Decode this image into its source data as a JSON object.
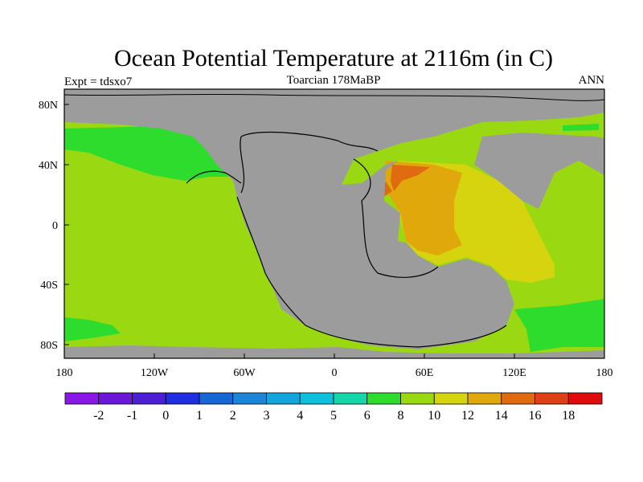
{
  "header": {
    "title": "Ocean Potential Temperature at 2116m (in C)",
    "left_label": "Expt = tdsxo7",
    "center_label": "Toarcian 178MaBP",
    "right_label": "ANN"
  },
  "map": {
    "x_tick_labels": [
      "180",
      "120W",
      "60W",
      "0",
      "60E",
      "120E",
      "180"
    ],
    "y_tick_labels": [
      "80N",
      "40N",
      "0",
      "40S",
      "80S"
    ],
    "land_color": "#9c9c9c",
    "coastline_color": "#000000"
  },
  "colorbar": {
    "colors": [
      "#8a17e6",
      "#6a17d8",
      "#4d1fd4",
      "#1f2ee0",
      "#1666d6",
      "#1b86d8",
      "#12a6dc",
      "#0ec0dc",
      "#14d6a8",
      "#2edc2e",
      "#9ad812",
      "#d6d40e",
      "#e0a80a",
      "#e06a10",
      "#e04018",
      "#e00c0c"
    ],
    "labels": [
      "-2",
      "-1",
      "0",
      "1",
      "2",
      "3",
      "4",
      "5",
      "6",
      "8",
      "10",
      "12",
      "14",
      "16",
      "18"
    ]
  }
}
